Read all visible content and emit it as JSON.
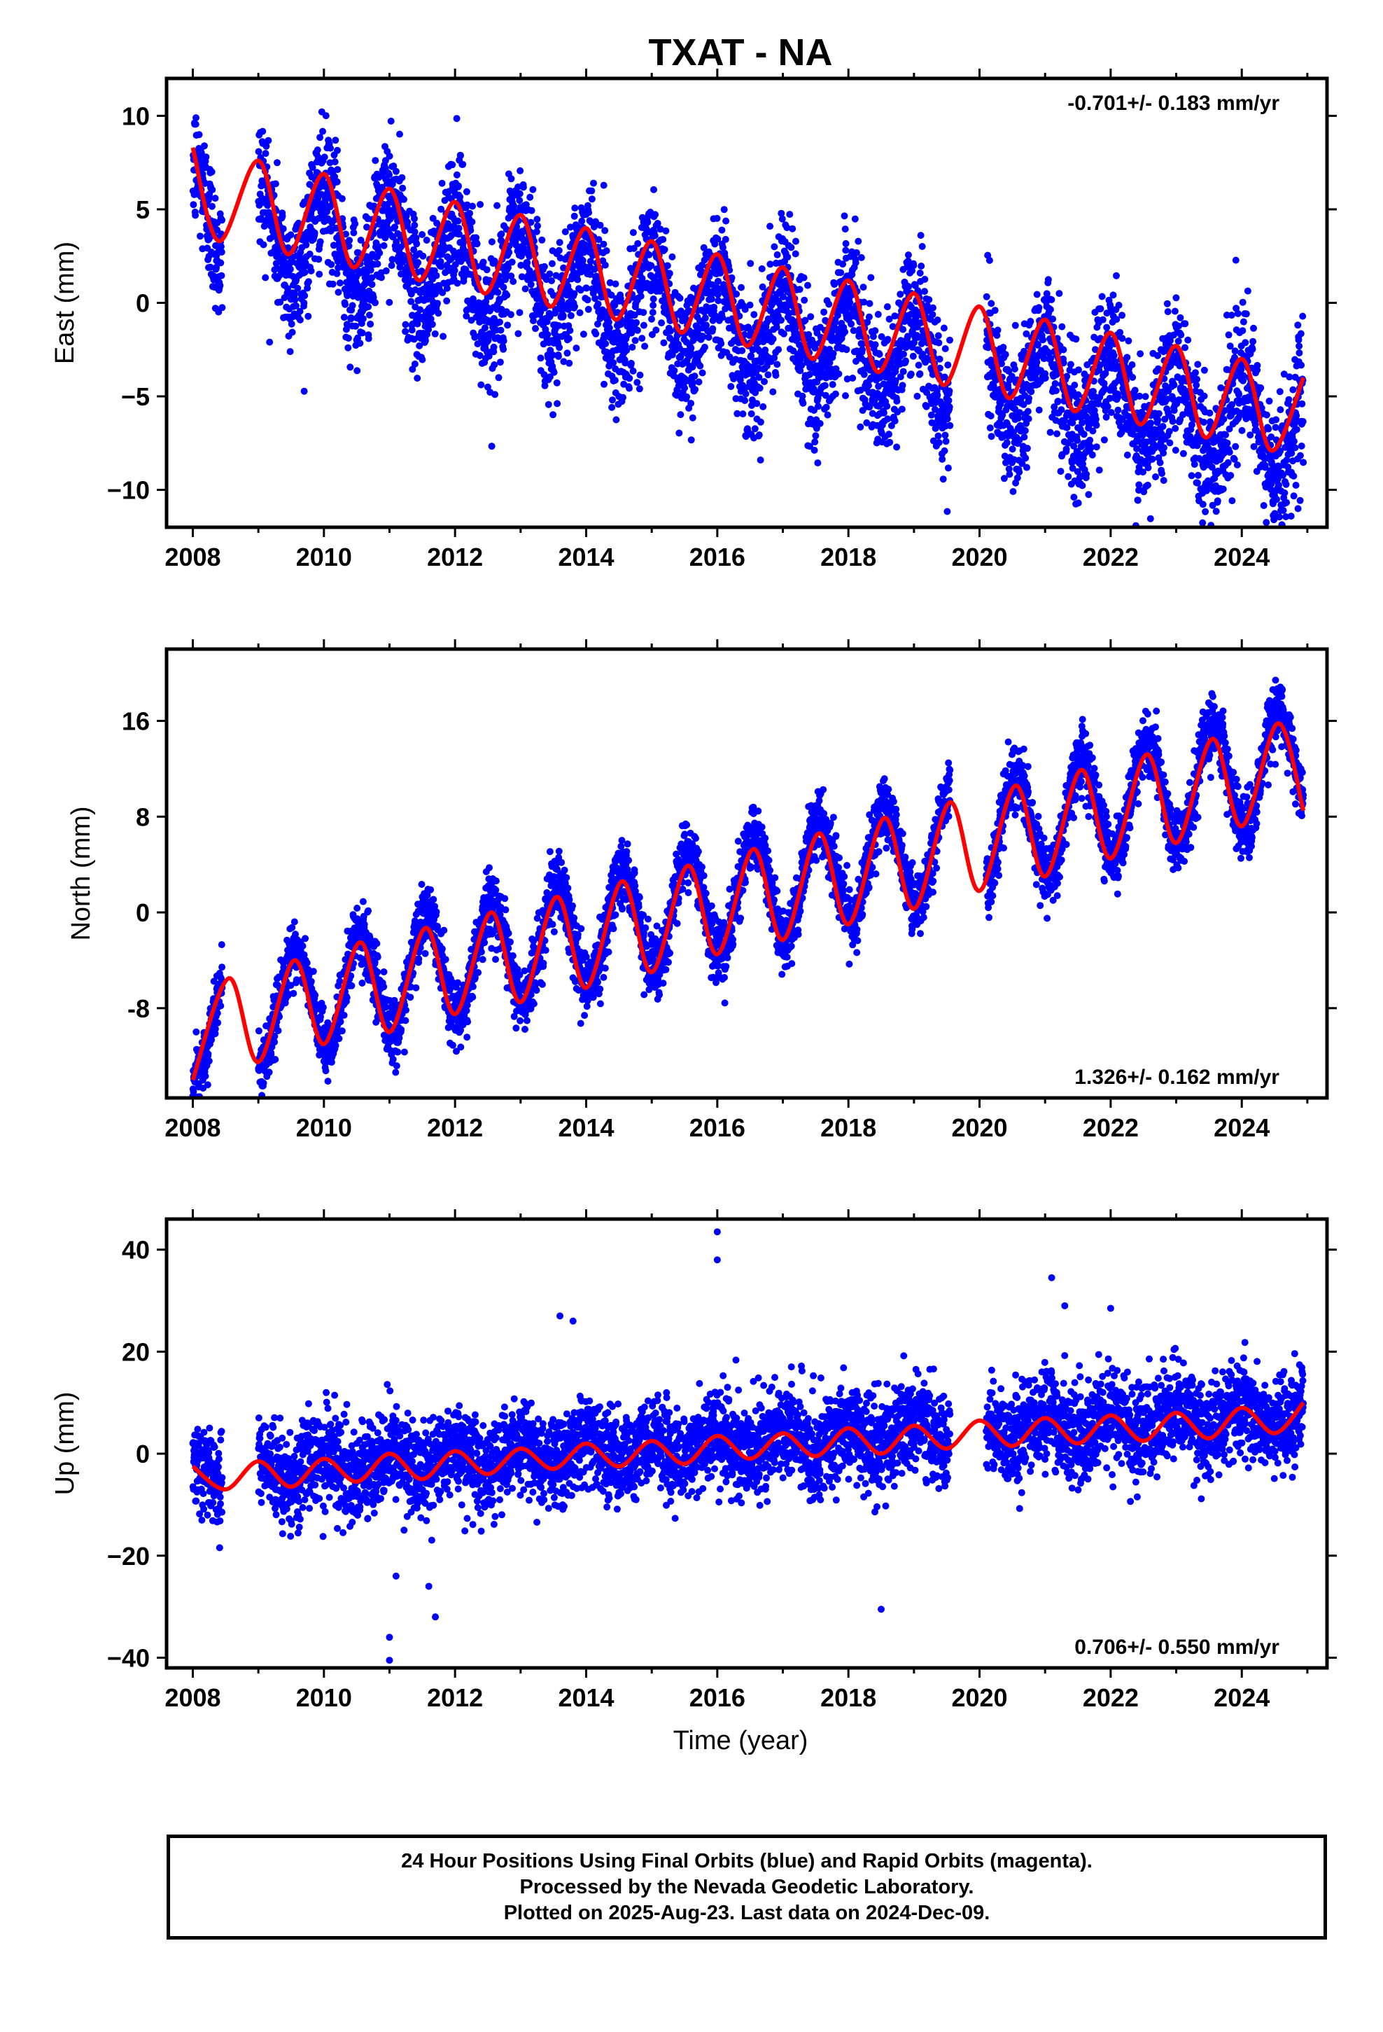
{
  "title": "TXAT - NA",
  "colors": {
    "data_points": "#0000ff",
    "model_fit": "#ff0000",
    "frame": "#000000"
  },
  "chart_data": [
    {
      "type": "scatter",
      "component": "east",
      "ylabel": "East (mm)",
      "xlabel": "",
      "rate_text": "-0.701+/- 0.183 mm/yr",
      "rate_position": "top-right",
      "xlim": [
        2007.6,
        2025.3
      ],
      "ylim": [
        -12,
        12
      ],
      "xticks": [
        2008,
        2010,
        2012,
        2014,
        2016,
        2018,
        2020,
        2022,
        2024
      ],
      "yticks": [
        10,
        5,
        0,
        -5,
        -10
      ],
      "ytick_labels": [
        "10",
        "5",
        "0",
        "−5",
        "−10"
      ],
      "data_span": [
        2008.0,
        2024.94
      ],
      "gaps": [
        [
          2008.45,
          2009.0
        ],
        [
          2019.55,
          2020.1
        ]
      ],
      "series": [
        {
          "name": "blue",
          "kind": "points",
          "note": "daily positions"
        },
        {
          "name": "red",
          "kind": "line"
        }
      ],
      "model_samples": [
        [
          2008.0,
          8.3
        ],
        [
          2008.4,
          3.3
        ],
        [
          2009.0,
          7.6
        ],
        [
          2009.45,
          2.6
        ],
        [
          2010.0,
          6.9
        ],
        [
          2010.45,
          1.9
        ],
        [
          2011.0,
          6.1
        ],
        [
          2011.45,
          1.2
        ],
        [
          2012.0,
          5.4
        ],
        [
          2012.45,
          0.5
        ],
        [
          2013.0,
          4.7
        ],
        [
          2013.45,
          -0.2
        ],
        [
          2014.0,
          4.0
        ],
        [
          2014.45,
          -0.9
        ],
        [
          2015.0,
          3.3
        ],
        [
          2015.45,
          -1.6
        ],
        [
          2016.0,
          2.6
        ],
        [
          2016.45,
          -2.3
        ],
        [
          2017.0,
          1.9
        ],
        [
          2017.45,
          -3.0
        ],
        [
          2018.0,
          1.2
        ],
        [
          2018.45,
          -3.7
        ],
        [
          2019.0,
          0.5
        ],
        [
          2019.45,
          -4.4
        ],
        [
          2020.0,
          -0.2
        ],
        [
          2020.45,
          -5.1
        ],
        [
          2021.0,
          -0.9
        ],
        [
          2021.45,
          -5.8
        ],
        [
          2022.0,
          -1.6
        ],
        [
          2022.45,
          -6.5
        ],
        [
          2023.0,
          -2.3
        ],
        [
          2023.45,
          -7.2
        ],
        [
          2024.0,
          -3.0
        ],
        [
          2024.45,
          -7.9
        ],
        [
          2024.94,
          -4.0
        ]
      ],
      "trend": {
        "value_at_2008": 4.8,
        "rate": -0.701,
        "seasonal_amplitude": 2.5,
        "scatter_sd": 1.8,
        "peak_phase": 0.0
      }
    },
    {
      "type": "scatter",
      "component": "north",
      "ylabel": "North (mm)",
      "xlabel": "",
      "rate_text": "1.326+/- 0.162 mm/yr",
      "rate_position": "bottom-right",
      "xlim": [
        2007.6,
        2025.3
      ],
      "ylim": [
        -15.5,
        22
      ],
      "xticks": [
        2008,
        2010,
        2012,
        2014,
        2016,
        2018,
        2020,
        2022,
        2024
      ],
      "yticks": [
        16,
        8,
        0,
        -8
      ],
      "ytick_labels": [
        "16",
        "8",
        "0",
        "-8"
      ],
      "data_span": [
        2008.0,
        2024.94
      ],
      "gaps": [
        [
          2008.45,
          2009.0
        ],
        [
          2019.55,
          2020.1
        ]
      ],
      "series": [
        {
          "name": "blue",
          "kind": "points"
        },
        {
          "name": "red",
          "kind": "line"
        }
      ],
      "model_samples": [
        [
          2008.0,
          -14.0
        ],
        [
          2008.55,
          -5.5
        ],
        [
          2009.0,
          -12.5
        ],
        [
          2009.55,
          -4.0
        ],
        [
          2010.0,
          -11.0
        ],
        [
          2010.55,
          -2.5
        ],
        [
          2011.0,
          -10.0
        ],
        [
          2011.55,
          -1.3
        ],
        [
          2012.0,
          -8.5
        ],
        [
          2012.55,
          0.0
        ],
        [
          2013.0,
          -7.5
        ],
        [
          2013.55,
          1.3
        ],
        [
          2014.0,
          -6.3
        ],
        [
          2014.55,
          2.6
        ],
        [
          2015.0,
          -5.0
        ],
        [
          2015.55,
          3.9
        ],
        [
          2016.0,
          -3.5
        ],
        [
          2016.55,
          5.3
        ],
        [
          2017.0,
          -2.3
        ],
        [
          2017.55,
          6.6
        ],
        [
          2018.0,
          -1.0
        ],
        [
          2018.55,
          7.9
        ],
        [
          2019.0,
          0.3
        ],
        [
          2019.55,
          9.2
        ],
        [
          2020.0,
          1.8
        ],
        [
          2020.55,
          10.6
        ],
        [
          2021.0,
          3.0
        ],
        [
          2021.55,
          11.9
        ],
        [
          2022.0,
          4.5
        ],
        [
          2022.55,
          13.2
        ],
        [
          2023.0,
          5.8
        ],
        [
          2023.55,
          14.5
        ],
        [
          2024.0,
          7.2
        ],
        [
          2024.55,
          15.8
        ],
        [
          2024.94,
          8.5
        ]
      ],
      "trend": {
        "value_at_2008": -9.6,
        "rate": 1.326,
        "seasonal_amplitude": 4.4,
        "scatter_sd": 1.3,
        "peak_phase": 0.55
      }
    },
    {
      "type": "scatter",
      "component": "up",
      "ylabel": "Up (mm)",
      "xlabel": "Time (year)",
      "rate_text": "0.706+/- 0.550 mm/yr",
      "rate_position": "bottom-right",
      "xlim": [
        2007.6,
        2025.3
      ],
      "ylim": [
        -42,
        46
      ],
      "xticks": [
        2008,
        2010,
        2012,
        2014,
        2016,
        2018,
        2020,
        2022,
        2024
      ],
      "yticks": [
        40,
        20,
        0,
        -20,
        -40
      ],
      "ytick_labels": [
        "40",
        "20",
        "0",
        "−20",
        "−40"
      ],
      "data_span": [
        2008.0,
        2024.94
      ],
      "gaps": [
        [
          2008.45,
          2009.0
        ],
        [
          2019.55,
          2020.1
        ]
      ],
      "series": [
        {
          "name": "blue",
          "kind": "points"
        },
        {
          "name": "red",
          "kind": "line"
        }
      ],
      "model_samples": [
        [
          2008.0,
          -2.5
        ],
        [
          2008.5,
          -7.0
        ],
        [
          2009.0,
          -1.5
        ],
        [
          2009.5,
          -6.5
        ],
        [
          2010.0,
          -1.0
        ],
        [
          2010.5,
          -5.5
        ],
        [
          2011.0,
          0.0
        ],
        [
          2011.5,
          -5.0
        ],
        [
          2012.0,
          0.5
        ],
        [
          2012.5,
          -4.0
        ],
        [
          2013.0,
          1.0
        ],
        [
          2013.5,
          -3.0
        ],
        [
          2014.0,
          2.0
        ],
        [
          2014.5,
          -2.5
        ],
        [
          2015.0,
          2.5
        ],
        [
          2015.5,
          -2.0
        ],
        [
          2016.0,
          3.5
        ],
        [
          2016.5,
          -1.0
        ],
        [
          2017.0,
          4.0
        ],
        [
          2017.5,
          -0.5
        ],
        [
          2018.0,
          5.0
        ],
        [
          2018.5,
          0.0
        ],
        [
          2019.0,
          5.5
        ],
        [
          2019.5,
          1.0
        ],
        [
          2020.0,
          6.5
        ],
        [
          2020.5,
          1.5
        ],
        [
          2021.0,
          7.0
        ],
        [
          2021.5,
          2.0
        ],
        [
          2022.0,
          7.5
        ],
        [
          2022.5,
          2.5
        ],
        [
          2023.0,
          8.0
        ],
        [
          2023.5,
          3.0
        ],
        [
          2024.0,
          9.0
        ],
        [
          2024.5,
          4.0
        ],
        [
          2024.94,
          10.0
        ]
      ],
      "trend": {
        "value_at_2008": -4.0,
        "rate": 0.706,
        "seasonal_amplitude": 2.3,
        "scatter_sd": 4.5,
        "peak_phase": 0.0
      },
      "outliers": [
        [
          2016.0,
          43.5
        ],
        [
          2016.0,
          38.0
        ],
        [
          2021.1,
          34.5
        ],
        [
          2013.6,
          27.0
        ],
        [
          2018.5,
          -30.5
        ],
        [
          2011.0,
          -40.5
        ],
        [
          2011.0,
          -36.0
        ],
        [
          2011.7,
          -32.0
        ],
        [
          2011.1,
          -24.0
        ],
        [
          2011.6,
          -26.0
        ],
        [
          2013.8,
          26.0
        ],
        [
          2021.3,
          29.0
        ],
        [
          2022.0,
          28.5
        ]
      ]
    }
  ],
  "footer": {
    "line1": "24 Hour Positions Using Final Orbits (blue) and Rapid Orbits (magenta).",
    "line2": "Processed by the Nevada Geodetic Laboratory.",
    "line3": "Plotted on 2025-Aug-23. Last data on 2024-Dec-09."
  }
}
